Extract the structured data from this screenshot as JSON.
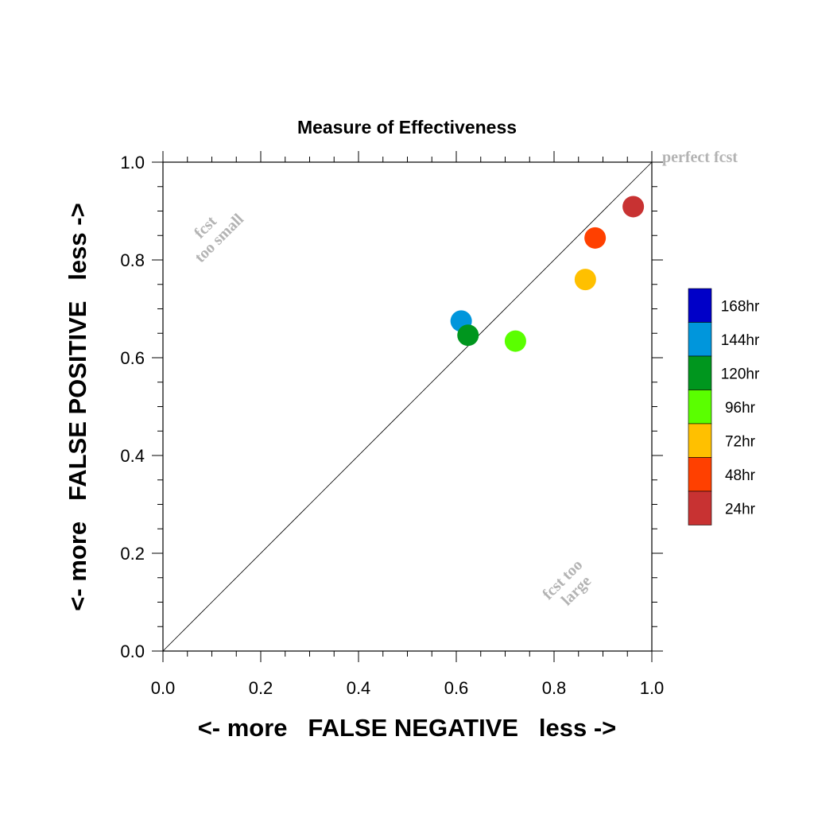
{
  "chart_data": {
    "type": "scatter",
    "title": "Measure of Effectiveness",
    "xlabel": "<- more   FALSE NEGATIVE   less ->",
    "ylabel": "<- more   FALSE POSITIVE   less ->",
    "xlim": [
      0.0,
      1.0
    ],
    "ylim": [
      0.0,
      1.0
    ],
    "xticks": [
      "0.0",
      "0.2",
      "0.4",
      "0.6",
      "0.8",
      "1.0"
    ],
    "yticks": [
      "0.0",
      "0.2",
      "0.4",
      "0.6",
      "0.8",
      "1.0"
    ],
    "grid": false,
    "reference_line": "diagonal y = x",
    "annotations": {
      "perfect": "perfect fcst",
      "too_small": [
        "fcst",
        "too small"
      ],
      "too_large": [
        "fcst too",
        "large"
      ]
    },
    "legend_position": "right",
    "series": [
      {
        "name": "168hr",
        "color": "#0000c8",
        "points": []
      },
      {
        "name": "144hr",
        "color": "#0096dc",
        "points": [
          [
            0.61,
            0.675
          ]
        ]
      },
      {
        "name": "120hr",
        "color": "#00961e",
        "points": [
          [
            0.624,
            0.646
          ]
        ]
      },
      {
        "name": "96hr",
        "color": "#5aff00",
        "points": [
          [
            0.721,
            0.634
          ]
        ]
      },
      {
        "name": "72hr",
        "color": "#ffc000",
        "points": [
          [
            0.864,
            0.76
          ]
        ]
      },
      {
        "name": "48hr",
        "color": "#ff4000",
        "points": [
          [
            0.884,
            0.845
          ]
        ]
      },
      {
        "name": "24hr",
        "color": "#c83232",
        "points": [
          [
            0.962,
            0.909
          ]
        ]
      }
    ]
  }
}
